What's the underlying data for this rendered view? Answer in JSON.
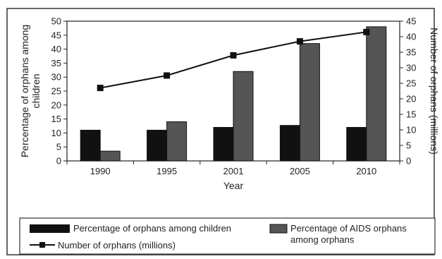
{
  "chart_data": {
    "type": "bar",
    "categories": [
      "1990",
      "1995",
      "2001",
      "2005",
      "2010"
    ],
    "xlabel": "Year",
    "ylabel": "Percentage of orphans among children",
    "ylabel_right": "Number of orphans (millions)",
    "ylim": [
      0,
      50
    ],
    "ylim_right": [
      0,
      45
    ],
    "yticks": [
      "0",
      "5",
      "10",
      "15",
      "20",
      "25",
      "30",
      "35",
      "40",
      "45",
      "50"
    ],
    "yticks_right": [
      "0",
      "5",
      "10",
      "15",
      "20",
      "25",
      "30",
      "35",
      "40",
      "45"
    ],
    "series": [
      {
        "name": "Percentage of orphans among children",
        "kind": "bar",
        "axis": "left",
        "color": "#111111",
        "values": [
          11,
          11,
          12,
          12.7,
          12
        ]
      },
      {
        "name": "Percentage of AIDS orphans among orphans",
        "kind": "bar",
        "axis": "left",
        "color": "#555555",
        "values": [
          3.5,
          14,
          32,
          42,
          48
        ]
      },
      {
        "name": "Number of orphans (millions)",
        "kind": "line",
        "axis": "right",
        "color": "#111111",
        "values": [
          23.5,
          27.5,
          34,
          38.5,
          41.5
        ]
      }
    ],
    "grid": false,
    "legend_position": "bottom"
  }
}
